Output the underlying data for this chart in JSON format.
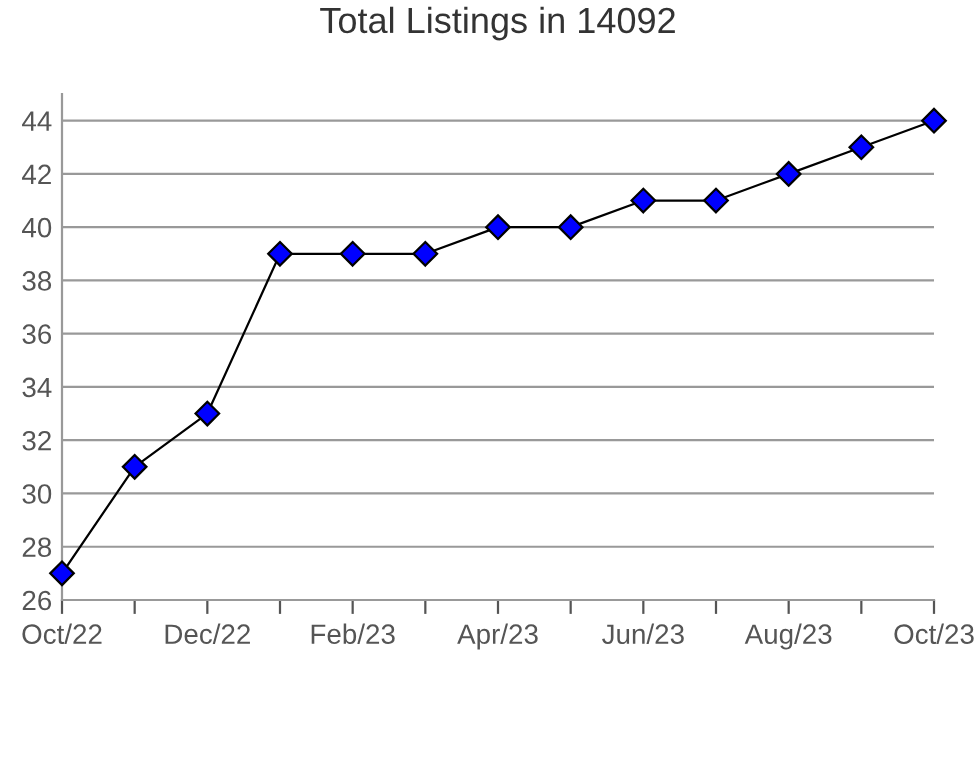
{
  "chart_data": {
    "type": "line",
    "title": "Total Listings in 14092",
    "categories": [
      "Oct/22",
      null,
      "Dec/22",
      null,
      "Feb/23",
      null,
      "Apr/23",
      null,
      "Jun/23",
      null,
      "Aug/23",
      null,
      "Oct/23"
    ],
    "series": [
      {
        "color": "#0000ff",
        "values": [
          27,
          31,
          33,
          39,
          39,
          39,
          40,
          40,
          41,
          41,
          42,
          43,
          44
        ]
      }
    ],
    "ylim": [
      26,
      45
    ],
    "yticks": [
      26,
      28,
      30,
      32,
      34,
      36,
      38,
      40,
      42,
      44
    ],
    "grid": "y",
    "marker": "diamond",
    "line_style": "solid"
  }
}
